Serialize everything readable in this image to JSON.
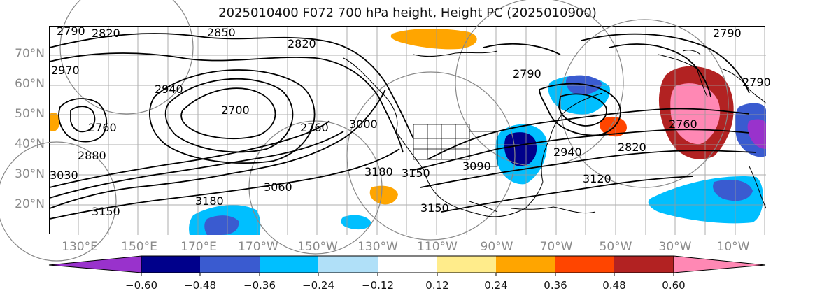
{
  "title": "2025010400 F072 700 hPa height, Height PC (2025010900)",
  "lat_labels": [
    "70°N",
    "60°N",
    "50°N",
    "40°N",
    "30°N",
    "20°N"
  ],
  "lon_labels": [
    "130°E",
    "150°E",
    "170°E",
    "170°W",
    "150°W",
    "130°W",
    "110°W",
    "90°W",
    "70°W",
    "50°W",
    "30°W",
    "10°W"
  ],
  "colorbar": {
    "colors": [
      "#9932cc",
      "#00008b",
      "#3a5bd0",
      "#00bfff",
      "#b0e0f8",
      "#ffffff",
      "#ffec8b",
      "#ffa500",
      "#ff4500",
      "#b22222",
      "#ff88b4"
    ],
    "tick_labels": [
      "−0.60",
      "−0.48",
      "−0.36",
      "−0.24",
      "−0.12",
      "0.12",
      "0.24",
      "0.36",
      "0.48",
      "0.60"
    ]
  },
  "contour_labels": [
    {
      "text": "2790"
    },
    {
      "text": "2820"
    },
    {
      "text": "2850"
    },
    {
      "text": "2820"
    },
    {
      "text": "2970"
    },
    {
      "text": "2940"
    },
    {
      "text": "2700"
    },
    {
      "text": "2760"
    },
    {
      "text": "2880"
    },
    {
      "text": "3030"
    },
    {
      "text": "3150"
    },
    {
      "text": "3180"
    },
    {
      "text": "3060"
    },
    {
      "text": "2760"
    },
    {
      "text": "3000"
    },
    {
      "text": "3180"
    },
    {
      "text": "3150"
    },
    {
      "text": "3150"
    },
    {
      "text": "3090"
    },
    {
      "text": "2790"
    },
    {
      "text": "2940"
    },
    {
      "text": "2820"
    },
    {
      "text": "3120"
    },
    {
      "text": "2790"
    },
    {
      "text": "2760"
    },
    {
      "text": "2790"
    }
  ]
}
